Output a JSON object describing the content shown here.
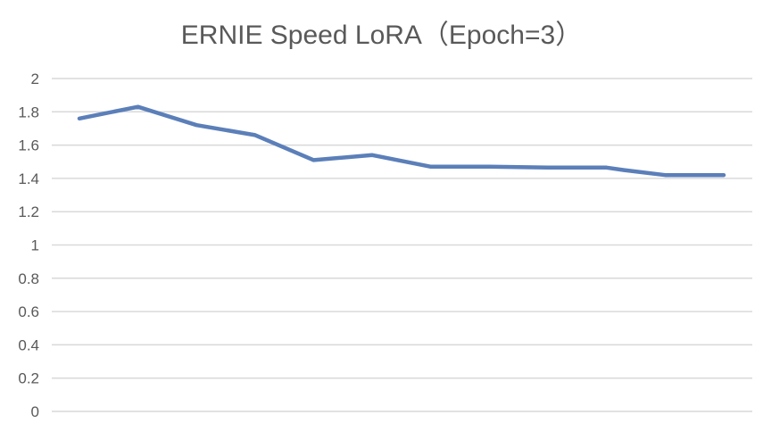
{
  "chart_data": {
    "type": "line",
    "title": "ERNIE Speed LoRA（Epoch=3）",
    "xlabel": "",
    "ylabel": "",
    "ylim": [
      0,
      2
    ],
    "yticks": [
      "0",
      "0.2",
      "0.4",
      "0.6",
      "0.8",
      "1",
      "1.2",
      "1.4",
      "1.6",
      "1.8",
      "2"
    ],
    "grid": true,
    "legend": "none",
    "series": [
      {
        "color": "#5b7fb9",
        "values": [
          1.76,
          1.83,
          1.72,
          1.66,
          1.51,
          1.54,
          1.47,
          1.47,
          1.465,
          1.465,
          1.45,
          1.42,
          1.42
        ]
      }
    ],
    "x": [
      1,
      2,
      3,
      4,
      5,
      6,
      7,
      8,
      9,
      10,
      10.3,
      11,
      12
    ]
  }
}
